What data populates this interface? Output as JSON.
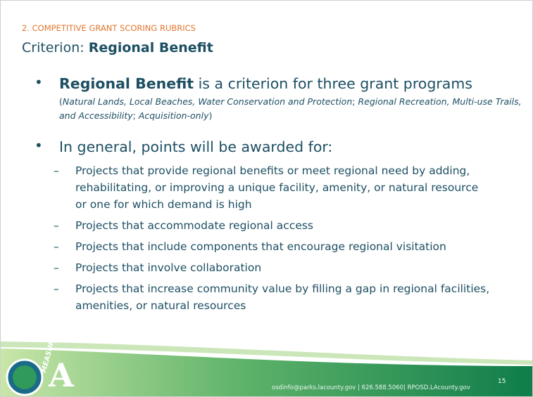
{
  "header": {
    "section": "2. COMPETITIVE GRANT SCORING RUBRICS",
    "title_prefix": "Criterion:",
    "title_bold": "Regional Benefit"
  },
  "bullets": [
    {
      "bold": "Regional Benefit",
      "text": " is a criterion for three grant programs",
      "note": [
        "(",
        "Natural Lands, Local Beaches, Water Conservation and Protection",
        "; ",
        "Regional Recreation, Multi-use Trails, and Accessibility",
        "; ",
        "Acquisition-only",
        ")"
      ]
    },
    {
      "text": "In general, points will be awarded for:",
      "items": [
        "Projects that provide regional benefits or meet regional need by adding, rehabilitating, or improving a unique facility, amenity, or natural resource or one for which demand is high",
        "Projects that accommodate regional access",
        "Projects that include components that encourage regional visitation",
        "Projects that involve collaboration",
        "Projects that increase community value by filling a gap in regional facilities, amenities, or natural resources"
      ]
    }
  ],
  "footer": {
    "contact": "osdinfo@parks.lacounty.gov | 626.588.5060| RPOSD.LAcounty.gov",
    "page": "15",
    "logo_word": "MEASURE",
    "logo_letter": "A"
  }
}
